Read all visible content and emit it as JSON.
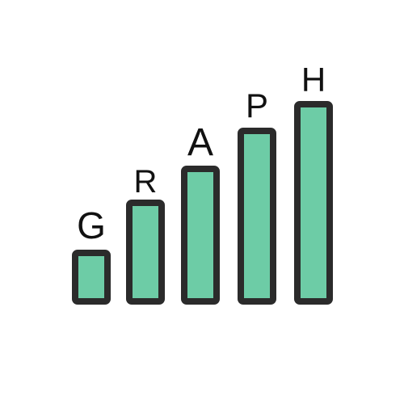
{
  "letters": [
    "G",
    "R",
    "A",
    "P",
    "H"
  ],
  "bar_levels": [
    1,
    2,
    3,
    4,
    5
  ],
  "colors": {
    "bar_fill": "#6dcca6",
    "bar_outline": "#2b2b2b",
    "letter": "#111111",
    "background": "#ffffff"
  },
  "icon": "bar-chart-graph-icon"
}
